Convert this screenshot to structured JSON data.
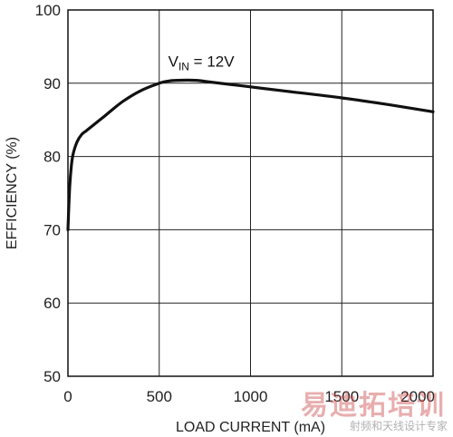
{
  "chart_data": {
    "type": "line",
    "title": "",
    "xlabel": "LOAD CURRENT (mA)",
    "ylabel": "EFFICIENCY (%)",
    "xlim": [
      0,
      2000
    ],
    "ylim": [
      50,
      100
    ],
    "xticks": [
      0,
      500,
      1000,
      1500,
      2000
    ],
    "yticks": [
      50,
      60,
      70,
      80,
      90,
      100
    ],
    "grid": true,
    "annotation": {
      "prefix": "V",
      "subscript": "IN",
      "suffix": " = 12V",
      "x": 730,
      "y": 93
    },
    "series": [
      {
        "name": "VIN = 12V",
        "x": [
          0,
          10,
          20,
          30,
          50,
          75,
          100,
          150,
          200,
          300,
          400,
          500,
          550,
          600,
          700,
          800,
          1000,
          1200,
          1500,
          1750,
          2000
        ],
        "y": [
          70,
          76,
          79,
          80.5,
          82,
          83,
          83.5,
          84.5,
          85.5,
          87.5,
          89,
          90,
          90.3,
          90.4,
          90.4,
          90.1,
          89.5,
          88.9,
          88,
          87.1,
          86.1
        ]
      }
    ]
  },
  "watermark": {
    "main": "易迪拓培训",
    "sub": "射频和天线设计专家"
  }
}
